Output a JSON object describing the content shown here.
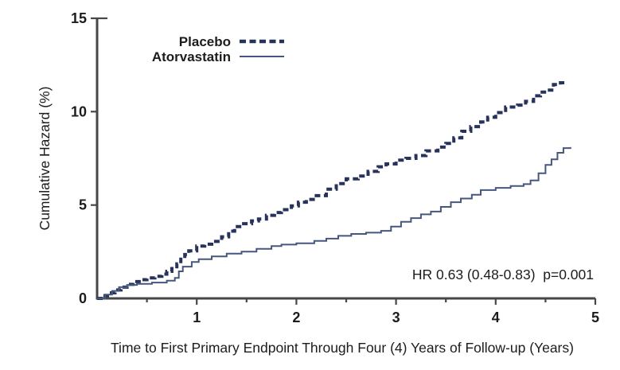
{
  "chart_data": {
    "type": "line",
    "subtype": "step-cumulative-hazard",
    "title": "",
    "xlabel": "Time to First Primary Endpoint Through Four (4) Years of Follow-up (Years)",
    "ylabel": "Cumulative Hazard (%)",
    "xlim": [
      0,
      5
    ],
    "ylim": [
      0,
      15
    ],
    "x_ticks": [
      1,
      2,
      3,
      4,
      5
    ],
    "x_minor_ticks": [
      0.5,
      1.5,
      2.5,
      3.5,
      4.5
    ],
    "y_ticks": [
      0,
      5,
      10,
      15
    ],
    "grid": false,
    "legend_position": "top-left-inside",
    "annotation": "HR 0.63 (0.48-0.83)  p=0.001",
    "colors": {
      "axis": "#474747",
      "text": "#1c1c1c",
      "placebo": "#27335a",
      "atorvastatin": "#46577e"
    },
    "series": [
      {
        "name": "Placebo",
        "style": "dashed",
        "color": "#27335a",
        "width": 4,
        "dash": "7 4.5",
        "points": [
          [
            0,
            0
          ],
          [
            0.06,
            0.15
          ],
          [
            0.12,
            0.3
          ],
          [
            0.18,
            0.45
          ],
          [
            0.24,
            0.6
          ],
          [
            0.3,
            0.75
          ],
          [
            0.36,
            0.9
          ],
          [
            0.44,
            1.0
          ],
          [
            0.5,
            1.1
          ],
          [
            0.58,
            1.18
          ],
          [
            0.65,
            1.3
          ],
          [
            0.7,
            1.45
          ],
          [
            0.75,
            1.6
          ],
          [
            0.8,
            1.85
          ],
          [
            0.84,
            2.1
          ],
          [
            0.88,
            2.35
          ],
          [
            0.92,
            2.55
          ],
          [
            1.0,
            2.8
          ],
          [
            1.08,
            2.9
          ],
          [
            1.15,
            3.05
          ],
          [
            1.25,
            3.3
          ],
          [
            1.32,
            3.6
          ],
          [
            1.38,
            3.85
          ],
          [
            1.45,
            4.0
          ],
          [
            1.55,
            4.15
          ],
          [
            1.62,
            4.25
          ],
          [
            1.7,
            4.45
          ],
          [
            1.78,
            4.6
          ],
          [
            1.85,
            4.75
          ],
          [
            1.95,
            4.95
          ],
          [
            2.02,
            5.15
          ],
          [
            2.1,
            5.3
          ],
          [
            2.2,
            5.5
          ],
          [
            2.3,
            5.85
          ],
          [
            2.4,
            6.15
          ],
          [
            2.5,
            6.4
          ],
          [
            2.62,
            6.55
          ],
          [
            2.72,
            6.8
          ],
          [
            2.82,
            7.05
          ],
          [
            2.9,
            7.2
          ],
          [
            3.0,
            7.4
          ],
          [
            3.1,
            7.5
          ],
          [
            3.2,
            7.65
          ],
          [
            3.3,
            7.9
          ],
          [
            3.42,
            8.1
          ],
          [
            3.5,
            8.3
          ],
          [
            3.58,
            8.6
          ],
          [
            3.66,
            8.95
          ],
          [
            3.75,
            9.2
          ],
          [
            3.85,
            9.45
          ],
          [
            3.92,
            9.7
          ],
          [
            4.0,
            9.95
          ],
          [
            4.1,
            10.25
          ],
          [
            4.22,
            10.35
          ],
          [
            4.3,
            10.55
          ],
          [
            4.38,
            10.85
          ],
          [
            4.45,
            11.05
          ],
          [
            4.52,
            11.15
          ],
          [
            4.58,
            11.45
          ],
          [
            4.65,
            11.55
          ],
          [
            4.71,
            11.6
          ]
        ]
      },
      {
        "name": "Atorvastatin",
        "style": "solid",
        "color": "#46577e",
        "width": 2,
        "dash": null,
        "points": [
          [
            0,
            0
          ],
          [
            0.08,
            0.2
          ],
          [
            0.15,
            0.4
          ],
          [
            0.22,
            0.6
          ],
          [
            0.3,
            0.72
          ],
          [
            0.4,
            0.78
          ],
          [
            0.55,
            0.85
          ],
          [
            0.7,
            0.95
          ],
          [
            0.78,
            1.1
          ],
          [
            0.82,
            1.45
          ],
          [
            0.86,
            1.7
          ],
          [
            0.95,
            1.95
          ],
          [
            1.02,
            2.1
          ],
          [
            1.15,
            2.25
          ],
          [
            1.3,
            2.4
          ],
          [
            1.45,
            2.5
          ],
          [
            1.6,
            2.65
          ],
          [
            1.75,
            2.8
          ],
          [
            1.85,
            2.88
          ],
          [
            2.0,
            2.95
          ],
          [
            2.18,
            3.08
          ],
          [
            2.3,
            3.2
          ],
          [
            2.42,
            3.35
          ],
          [
            2.55,
            3.45
          ],
          [
            2.7,
            3.52
          ],
          [
            2.85,
            3.62
          ],
          [
            2.95,
            3.85
          ],
          [
            3.05,
            4.1
          ],
          [
            3.15,
            4.3
          ],
          [
            3.25,
            4.5
          ],
          [
            3.35,
            4.65
          ],
          [
            3.45,
            4.9
          ],
          [
            3.55,
            5.15
          ],
          [
            3.65,
            5.35
          ],
          [
            3.76,
            5.55
          ],
          [
            3.85,
            5.8
          ],
          [
            4.0,
            5.92
          ],
          [
            4.15,
            6.02
          ],
          [
            4.28,
            6.12
          ],
          [
            4.35,
            6.32
          ],
          [
            4.43,
            6.7
          ],
          [
            4.5,
            7.15
          ],
          [
            4.56,
            7.45
          ],
          [
            4.62,
            7.8
          ],
          [
            4.68,
            8.05
          ],
          [
            4.75,
            8.1
          ]
        ]
      }
    ]
  }
}
